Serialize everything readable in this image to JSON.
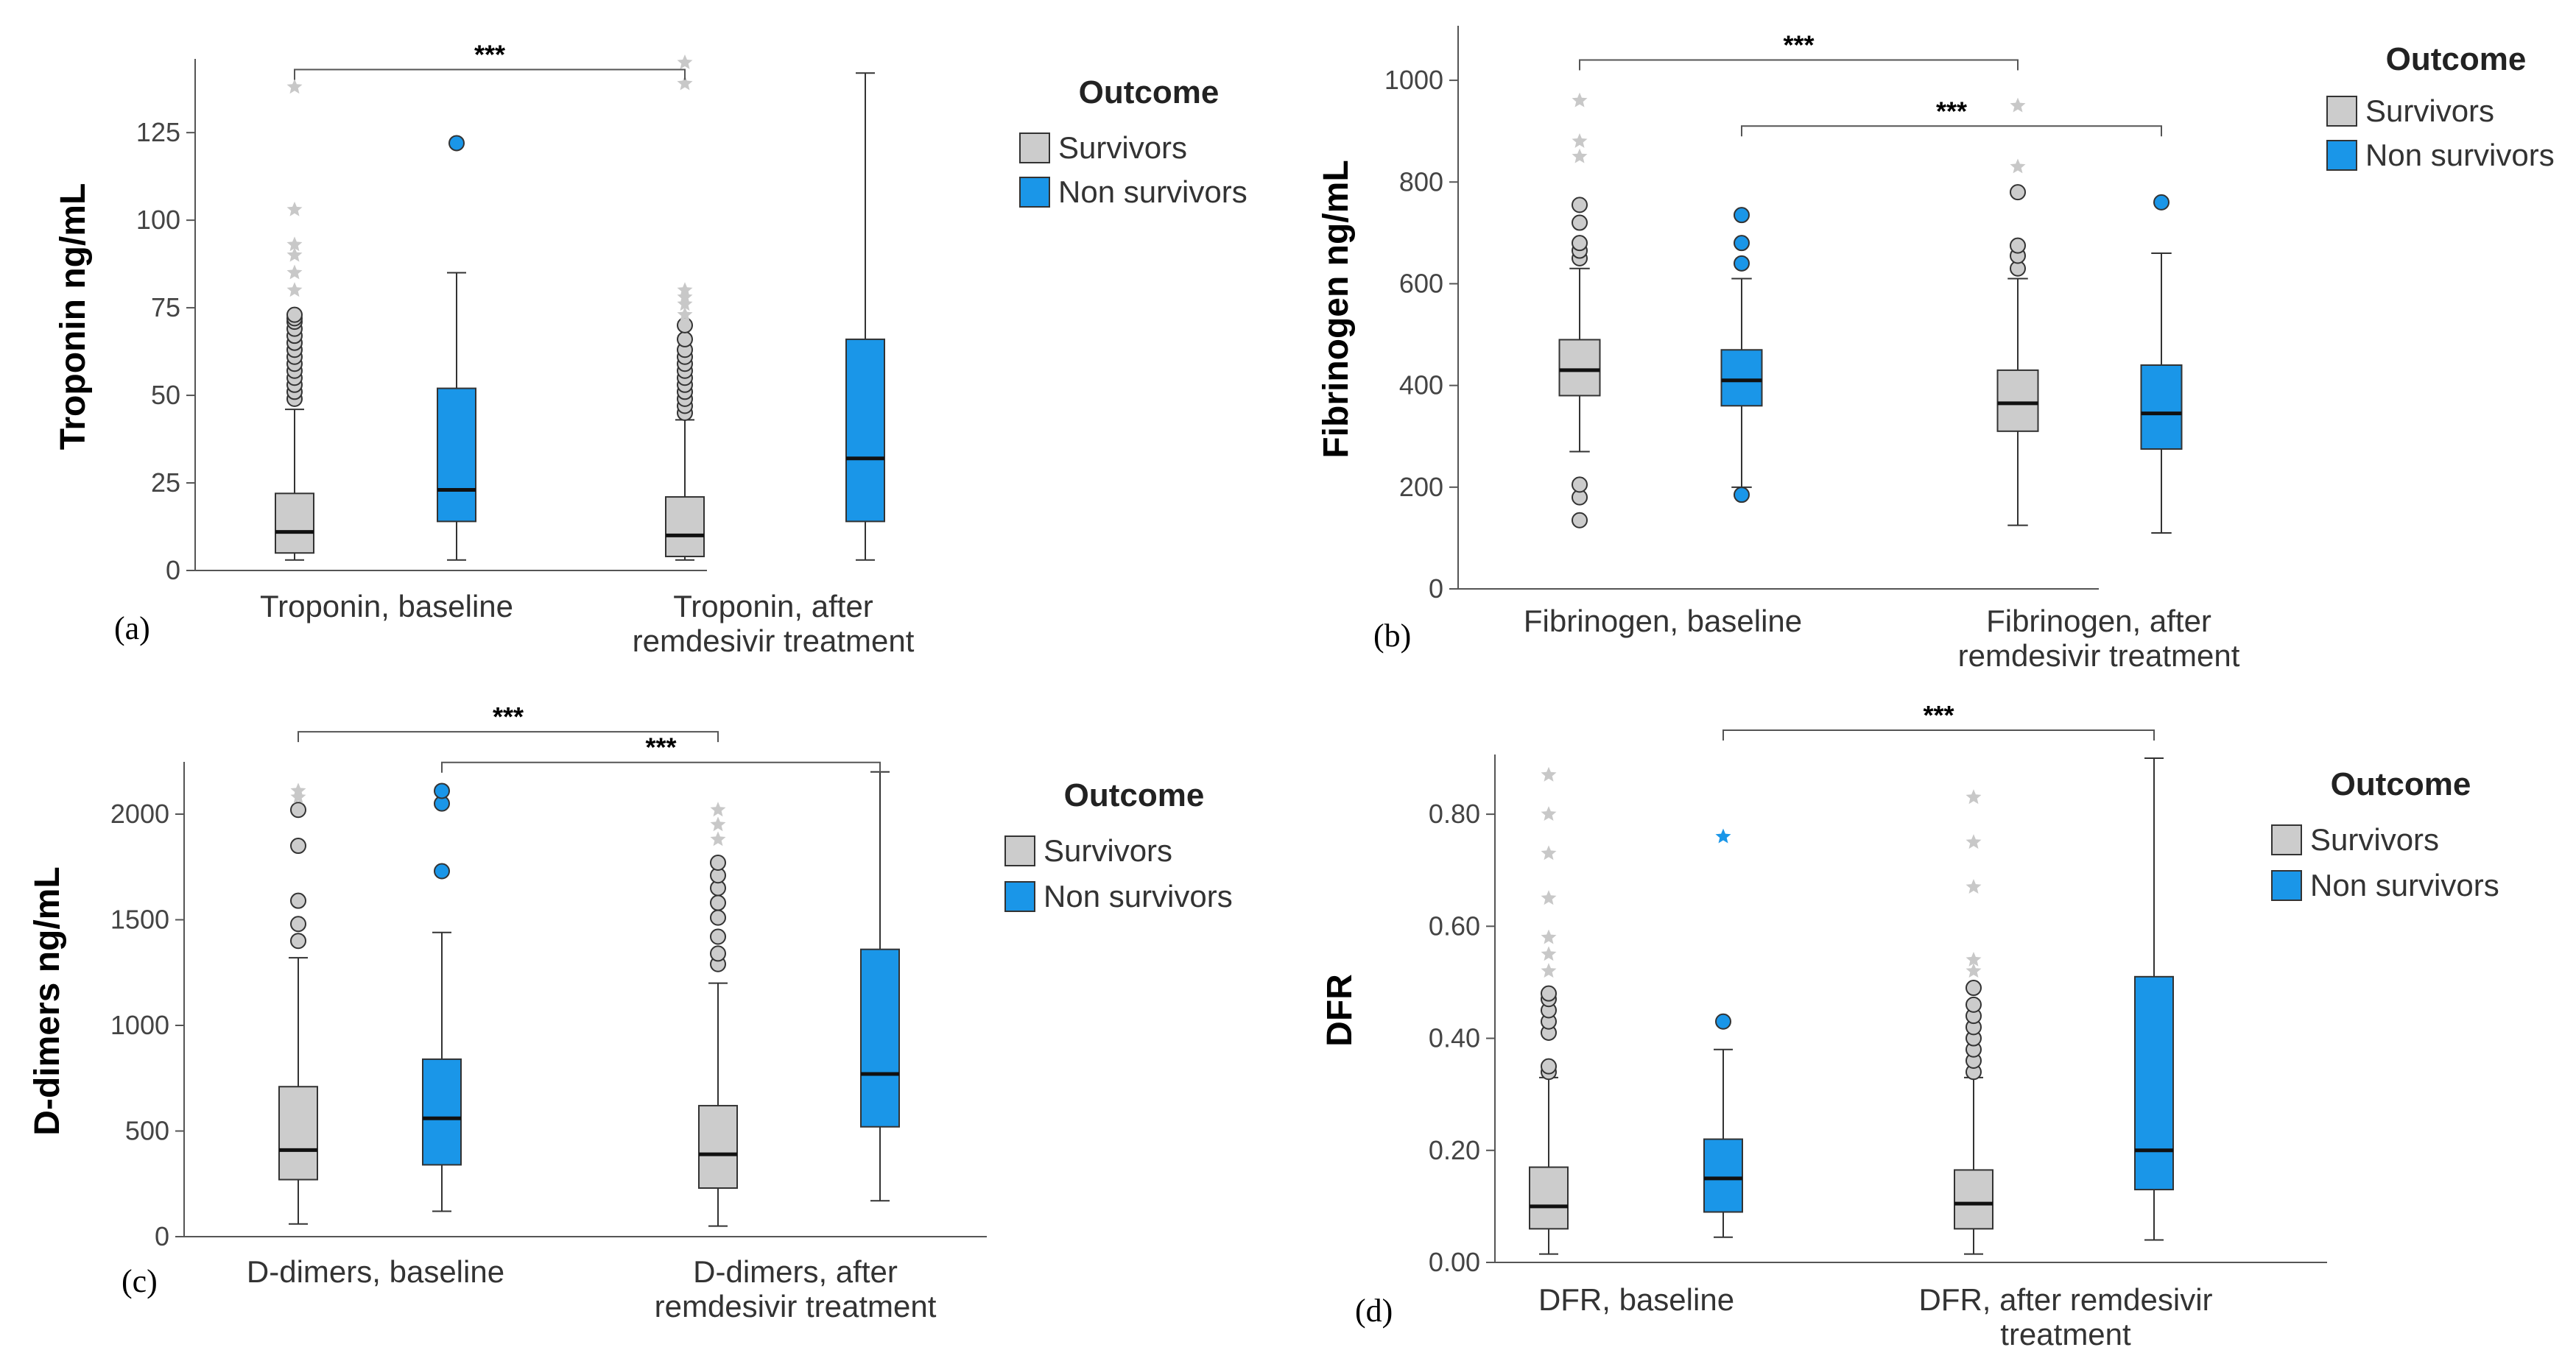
{
  "colors": {
    "survivors": "#cccccc",
    "non_survivors": "#1a96e8",
    "outline": "#333333",
    "axis": "#555555",
    "star": "#c8c8c8"
  },
  "chart_data": [
    {
      "id": "a",
      "type": "boxplot",
      "panel_label": "(a)",
      "ylabel": "Troponin ng/mL",
      "ylim": [
        0,
        145
      ],
      "yticks": [
        0,
        25,
        50,
        75,
        100,
        125
      ],
      "ytick_labels": [
        "0",
        "25",
        "50",
        "75",
        "100",
        "125"
      ],
      "categories": [
        {
          "line1": "Troponin, baseline",
          "line2": ""
        },
        {
          "line1": "Troponin, after",
          "line2": "remdesivir treatment"
        }
      ],
      "legend": {
        "title": "Outcome",
        "entries": [
          "Survivors",
          "Non survivors"
        ]
      },
      "significance": [
        {
          "label": "***",
          "from_box": 0,
          "to_box": 2,
          "y": 143
        }
      ],
      "boxes": [
        {
          "category": 0,
          "series": "Survivors",
          "min": 3,
          "q1": 5,
          "median": 11,
          "q3": 22,
          "max": 46,
          "outliers": [
            49,
            51,
            53,
            55,
            57,
            59,
            61,
            63,
            65,
            67,
            69,
            71,
            72,
            73
          ],
          "extremes": [
            80,
            85,
            90,
            93,
            103,
            138
          ]
        },
        {
          "category": 0,
          "series": "Non survivors",
          "min": 3,
          "q1": 14,
          "median": 23,
          "q3": 52,
          "max": 85,
          "outliers": [
            122
          ],
          "extremes": []
        },
        {
          "category": 1,
          "series": "Survivors",
          "min": 3,
          "q1": 4,
          "median": 10,
          "q3": 21,
          "max": 43,
          "outliers": [
            45,
            47,
            49,
            51,
            53,
            55,
            57,
            59,
            61,
            63,
            66,
            70
          ],
          "extremes": [
            73,
            76,
            78,
            80,
            139,
            145
          ]
        },
        {
          "category": 1,
          "series": "Non survivors",
          "min": 3,
          "q1": 14,
          "median": 32,
          "q3": 66,
          "max": 142,
          "outliers": [],
          "extremes": []
        }
      ]
    },
    {
      "id": "b",
      "type": "boxplot",
      "panel_label": "(b)",
      "ylabel": "Fibrinogen ng/mL",
      "ylim": [
        0,
        1100
      ],
      "yticks": [
        0,
        200,
        400,
        600,
        800,
        1000
      ],
      "ytick_labels": [
        "0",
        "200",
        "400",
        "600",
        "800",
        "1000"
      ],
      "categories": [
        {
          "line1": "Fibrinogen, baseline",
          "line2": ""
        },
        {
          "line1": "Fibrinogen, after",
          "line2": "remdesivir treatment"
        }
      ],
      "legend": {
        "title": "Outcome",
        "entries": [
          "Survivors",
          "Non survivors"
        ]
      },
      "significance": [
        {
          "label": "***",
          "from_box": 0,
          "to_box": 2,
          "y": 1040
        },
        {
          "label": "***",
          "from_box": 1,
          "to_box": 3,
          "y": 910
        }
      ],
      "boxes": [
        {
          "category": 0,
          "series": "Survivors",
          "min": 270,
          "q1": 380,
          "median": 430,
          "q3": 490,
          "max": 630,
          "outliers": [
            135,
            180,
            205,
            650,
            665,
            680,
            720,
            755
          ],
          "extremes": [
            850,
            880,
            960
          ]
        },
        {
          "category": 0,
          "series": "Non survivors",
          "min": 200,
          "q1": 360,
          "median": 410,
          "q3": 470,
          "max": 610,
          "outliers": [
            185,
            640,
            680,
            735
          ],
          "extremes": []
        },
        {
          "category": 1,
          "series": "Survivors",
          "min": 125,
          "q1": 310,
          "median": 365,
          "q3": 430,
          "max": 610,
          "outliers": [
            630,
            655,
            675,
            780
          ],
          "extremes": [
            830,
            950
          ]
        },
        {
          "category": 1,
          "series": "Non survivors",
          "min": 110,
          "q1": 275,
          "median": 345,
          "q3": 440,
          "max": 660,
          "outliers": [
            760
          ],
          "extremes": []
        }
      ]
    },
    {
      "id": "c",
      "type": "boxplot",
      "panel_label": "(c)",
      "ylabel": "D-dimers ng/mL",
      "ylim": [
        0,
        2230
      ],
      "yticks": [
        0,
        500,
        1000,
        1500,
        2000
      ],
      "ytick_labels": [
        "0",
        "500",
        "1000",
        "1500",
        "2000"
      ],
      "categories": [
        {
          "line1": "D-dimers, baseline",
          "line2": ""
        },
        {
          "line1": "D-dimers, after",
          "line2": "remdesivir treatment"
        }
      ],
      "legend": {
        "title": "Outcome",
        "entries": [
          "Survivors",
          "Non survivors"
        ]
      },
      "significance": [
        {
          "label": "***",
          "from_box": 0,
          "to_box": 2,
          "y": 2390
        },
        {
          "label": "***",
          "from_box": 1,
          "to_box": 3,
          "y": 2245
        }
      ],
      "boxes": [
        {
          "category": 0,
          "series": "Survivors",
          "min": 60,
          "q1": 270,
          "median": 410,
          "q3": 710,
          "max": 1320,
          "outliers": [
            1400,
            1480,
            1590,
            1850,
            2020
          ],
          "extremes": [
            2080,
            2110
          ]
        },
        {
          "category": 0,
          "series": "Non survivors",
          "min": 120,
          "q1": 340,
          "median": 560,
          "q3": 840,
          "max": 1440,
          "outliers": [
            1730,
            2050,
            2110
          ],
          "extremes": []
        },
        {
          "category": 1,
          "series": "Survivors",
          "min": 50,
          "q1": 230,
          "median": 390,
          "q3": 620,
          "max": 1200,
          "outliers": [
            1290,
            1340,
            1420,
            1510,
            1580,
            1650,
            1710,
            1770
          ],
          "extremes": [
            1880,
            1950,
            2020
          ]
        },
        {
          "category": 1,
          "series": "Non survivors",
          "min": 170,
          "q1": 520,
          "median": 770,
          "q3": 1360,
          "max": 2200,
          "outliers": [],
          "extremes": []
        }
      ]
    },
    {
      "id": "d",
      "type": "boxplot",
      "panel_label": "(d)",
      "ylabel": "DFR",
      "ylim": [
        0,
        0.9
      ],
      "yticks": [
        0,
        0.2,
        0.4,
        0.6,
        0.8
      ],
      "ytick_labels": [
        "0.00",
        "0.20",
        "0.40",
        "0.60",
        "0.80"
      ],
      "categories": [
        {
          "line1": "DFR, baseline",
          "line2": ""
        },
        {
          "line1": "DFR, after remdesivir",
          "line2": "treatment"
        }
      ],
      "legend": {
        "title": "Outcome",
        "entries": [
          "Survivors",
          "Non survivors"
        ]
      },
      "significance": [
        {
          "label": "***",
          "from_box": 1,
          "to_box": 3,
          "y": 0.95
        }
      ],
      "boxes": [
        {
          "category": 0,
          "series": "Survivors",
          "min": 0.015,
          "q1": 0.06,
          "median": 0.1,
          "q3": 0.17,
          "max": 0.33,
          "outliers": [
            0.34,
            0.35,
            0.41,
            0.43,
            0.45,
            0.47,
            0.48
          ],
          "extremes": [
            0.52,
            0.55,
            0.58,
            0.65,
            0.73,
            0.8,
            0.87
          ]
        },
        {
          "category": 0,
          "series": "Non survivors",
          "min": 0.045,
          "q1": 0.09,
          "median": 0.15,
          "q3": 0.22,
          "max": 0.38,
          "outliers": [
            0.43
          ],
          "extremes": [
            0.76
          ]
        },
        {
          "category": 1,
          "series": "Survivors",
          "min": 0.015,
          "q1": 0.06,
          "median": 0.105,
          "q3": 0.165,
          "max": 0.33,
          "outliers": [
            0.34,
            0.36,
            0.38,
            0.4,
            0.42,
            0.44,
            0.46,
            0.49
          ],
          "extremes": [
            0.52,
            0.54,
            0.67,
            0.75,
            0.83
          ]
        },
        {
          "category": 1,
          "series": "Non survivors",
          "min": 0.04,
          "q1": 0.13,
          "median": 0.2,
          "q3": 0.51,
          "max": 0.9,
          "outliers": [],
          "extremes": []
        }
      ]
    }
  ]
}
